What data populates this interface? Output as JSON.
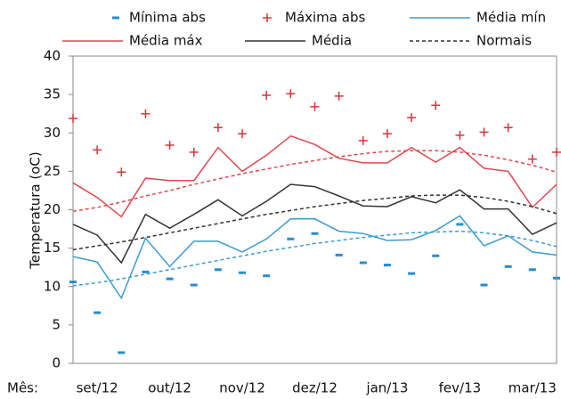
{
  "chart_data": {
    "type": "line",
    "y_label": "Temperatura (oC)",
    "x_label": "Mês:",
    "categories": [
      null,
      "set/12",
      null,
      null,
      "out/12",
      null,
      null,
      "nov/12",
      null,
      null,
      "dez/12",
      null,
      null,
      "jan/13",
      null,
      null,
      "fev/13",
      null,
      null,
      "mar/13",
      null
    ],
    "ylim": [
      0,
      40
    ],
    "yticks": [
      0,
      5,
      10,
      15,
      20,
      25,
      30,
      35,
      40
    ],
    "series": [
      {
        "name": "Mínima abs",
        "color": "#2a8ccc",
        "marker": "dash",
        "values": [
          10.6,
          6.6,
          1.4,
          11.9,
          11.0,
          10.2,
          12.2,
          11.8,
          11.4,
          16.2,
          16.9,
          14.1,
          13.1,
          12.8,
          11.7,
          14.0,
          18.1,
          10.2,
          12.6,
          12.2,
          11.1
        ]
      },
      {
        "name": "Máxima abs",
        "color": "#d8343a",
        "marker": "plus",
        "values": [
          31.9,
          27.8,
          24.9,
          32.5,
          28.4,
          27.5,
          30.7,
          29.9,
          34.9,
          35.1,
          33.4,
          34.8,
          29.0,
          29.9,
          32.0,
          33.6,
          29.7,
          30.1,
          30.7,
          26.6,
          27.5
        ]
      },
      {
        "name": "Média mín",
        "color": "#3b9bd1",
        "style": "solid",
        "values": [
          13.9,
          13.2,
          8.5,
          16.3,
          12.6,
          15.9,
          15.9,
          14.5,
          16.2,
          18.8,
          18.8,
          17.2,
          16.9,
          16.0,
          16.1,
          17.3,
          19.2,
          15.3,
          16.6,
          14.5,
          14.1
        ]
      },
      {
        "name": "Média máx",
        "color": "#e0474c",
        "style": "solid",
        "values": [
          23.5,
          21.6,
          19.1,
          24.1,
          23.8,
          23.8,
          28.1,
          25.0,
          27.1,
          29.6,
          28.5,
          26.7,
          26.1,
          26.1,
          28.1,
          26.2,
          28.1,
          25.4,
          25.0,
          20.3,
          23.3
        ]
      },
      {
        "name": "Média",
        "color": "#333333",
        "style": "solid",
        "values": [
          18.1,
          16.7,
          13.1,
          19.4,
          17.6,
          19.4,
          21.3,
          19.2,
          21.1,
          23.3,
          23.0,
          21.8,
          20.5,
          20.4,
          21.7,
          20.9,
          22.6,
          20.1,
          20.1,
          16.8,
          18.3
        ]
      },
      {
        "name": "Normais",
        "color": "#333333",
        "style": "dashed",
        "values": [
          14.8,
          15.3,
          15.8,
          16.4,
          17.0,
          17.6,
          18.2,
          18.8,
          19.4,
          19.9,
          20.4,
          20.8,
          21.2,
          21.5,
          21.8,
          21.9,
          21.9,
          21.6,
          21.1,
          20.4,
          19.5
        ],
        "curves": [
          {
            "color": "#e0474c",
            "values": [
              19.8,
              20.3,
              21.0,
              21.8,
              22.5,
              23.3,
              24.0,
              24.7,
              25.3,
              25.9,
              26.4,
              26.9,
              27.3,
              27.6,
              27.7,
              27.7,
              27.5,
              27.1,
              26.5,
              25.8,
              24.9
            ]
          },
          {
            "color": "#3b9bd1",
            "values": [
              10.1,
              10.5,
              11.0,
              11.6,
              12.2,
              12.8,
              13.4,
              14.0,
              14.6,
              15.1,
              15.6,
              16.0,
              16.4,
              16.7,
              17.0,
              17.1,
              17.2,
              17.0,
              16.6,
              16.0,
              15.2
            ]
          }
        ]
      }
    ]
  }
}
